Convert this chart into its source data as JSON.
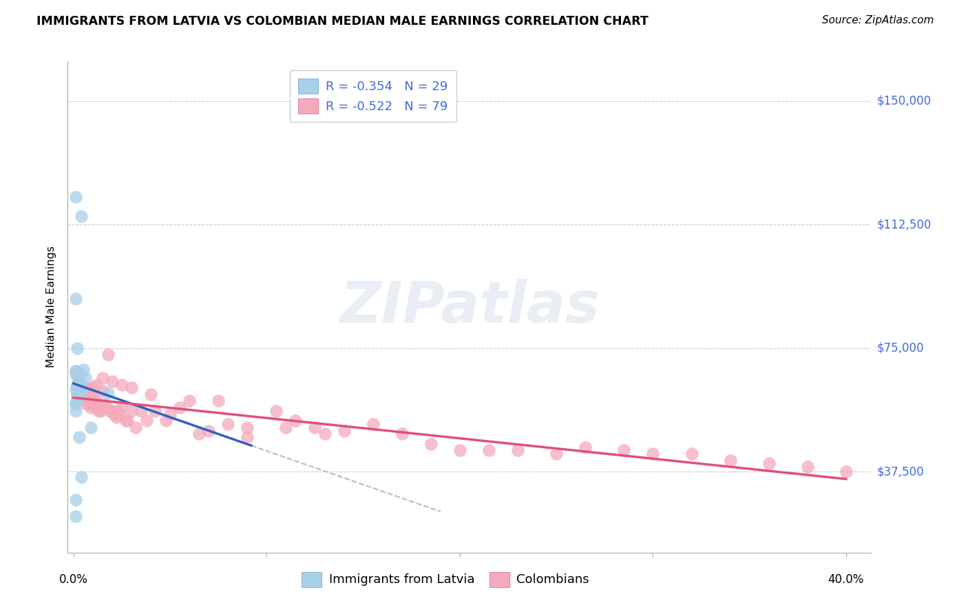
{
  "title": "IMMIGRANTS FROM LATVIA VS COLOMBIAN MEDIAN MALE EARNINGS CORRELATION CHART",
  "source": "Source: ZipAtlas.com",
  "ylabel": "Median Male Earnings",
  "ytick_labels": [
    "$37,500",
    "$75,000",
    "$112,500",
    "$150,000"
  ],
  "ytick_values": [
    37500,
    75000,
    112500,
    150000
  ],
  "ylim": [
    13000,
    162000
  ],
  "xlim": [
    -0.003,
    0.413
  ],
  "legend_label1": "R = -0.354   N = 29",
  "legend_label2": "R = -0.522   N = 79",
  "legend_series1": "Immigrants from Latvia",
  "legend_series2": "Colombians",
  "color_latvia": "#A8D0E8",
  "color_colombia": "#F4AABB",
  "line_color_latvia": "#3060C0",
  "line_color_colombia": "#E0507A",
  "watermark": "ZIPatlas",
  "background_color": "#FFFFFF",
  "grid_color": "#CCCCCC",
  "latvia_x": [
    0.001,
    0.001,
    0.002,
    0.001,
    0.003,
    0.002,
    0.003,
    0.003,
    0.002,
    0.001,
    0.003,
    0.002,
    0.001,
    0.004,
    0.001,
    0.003,
    0.002,
    0.005,
    0.004,
    0.001,
    0.002,
    0.001,
    0.006,
    0.003,
    0.009,
    0.004,
    0.018,
    0.001,
    0.001
  ],
  "latvia_y": [
    67000,
    62500,
    75000,
    68000,
    65000,
    61000,
    63000,
    64000,
    60500,
    58000,
    62000,
    59500,
    121000,
    115000,
    90000,
    67500,
    64000,
    68500,
    61500,
    58500,
    63000,
    56000,
    66000,
    48000,
    51000,
    36000,
    61500,
    29000,
    24000
  ],
  "colombia_x": [
    0.001,
    0.002,
    0.002,
    0.003,
    0.003,
    0.004,
    0.004,
    0.005,
    0.005,
    0.006,
    0.006,
    0.007,
    0.007,
    0.008,
    0.009,
    0.009,
    0.01,
    0.011,
    0.012,
    0.012,
    0.013,
    0.013,
    0.014,
    0.015,
    0.016,
    0.017,
    0.018,
    0.019,
    0.02,
    0.021,
    0.022,
    0.023,
    0.024,
    0.025,
    0.027,
    0.028,
    0.03,
    0.032,
    0.035,
    0.038,
    0.042,
    0.048,
    0.055,
    0.065,
    0.075,
    0.09,
    0.105,
    0.115,
    0.125,
    0.14,
    0.155,
    0.17,
    0.185,
    0.2,
    0.215,
    0.23,
    0.25,
    0.265,
    0.285,
    0.3,
    0.32,
    0.34,
    0.36,
    0.38,
    0.4,
    0.05,
    0.07,
    0.09,
    0.11,
    0.13,
    0.08,
    0.06,
    0.04,
    0.03,
    0.025,
    0.02,
    0.015,
    0.012,
    0.01
  ],
  "colombia_y": [
    68000,
    67000,
    64000,
    65000,
    62000,
    64000,
    61000,
    63000,
    60000,
    62000,
    59000,
    63000,
    58000,
    60000,
    58000,
    57000,
    60000,
    58000,
    57000,
    59000,
    56000,
    58000,
    56000,
    62000,
    58000,
    57000,
    73000,
    56000,
    56000,
    55000,
    54000,
    56000,
    55000,
    57000,
    53000,
    53000,
    56000,
    51000,
    56000,
    53000,
    56000,
    53000,
    57000,
    49000,
    59000,
    51000,
    56000,
    53000,
    51000,
    50000,
    52000,
    49000,
    46000,
    44000,
    44000,
    44000,
    43000,
    45000,
    44000,
    43000,
    43000,
    41000,
    40000,
    39000,
    37500,
    55000,
    50000,
    48000,
    51000,
    49000,
    52000,
    59000,
    61000,
    63000,
    64000,
    65000,
    66000,
    64000,
    63000
  ]
}
